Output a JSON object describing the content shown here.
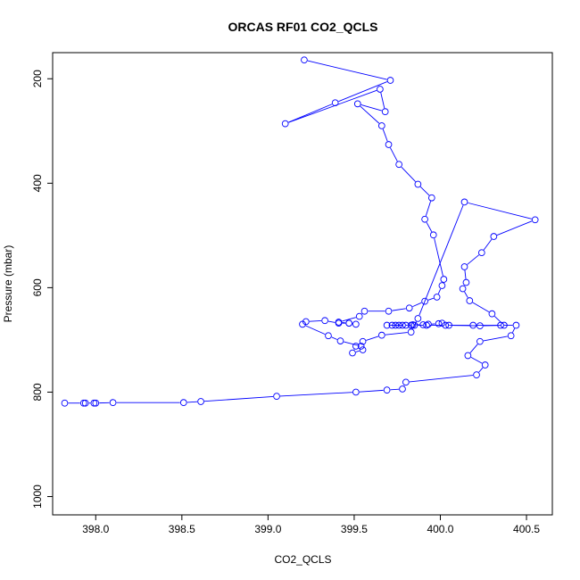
{
  "chart_data": {
    "type": "line",
    "title": "ORCAS RF01 CO2_QCLS",
    "xlabel": "CO2_QCLS",
    "ylabel": "Pressure (mbar)",
    "xlim": [
      397.75,
      400.65
    ],
    "ylim": [
      1035,
      150
    ],
    "y_inverted": true,
    "x_ticks": [
      "398.0",
      "398.5",
      "399.0",
      "399.5",
      "400.0",
      "400.5"
    ],
    "x_tick_values": [
      398.0,
      398.5,
      399.0,
      399.5,
      400.0,
      400.5
    ],
    "y_ticks": [
      "200",
      "400",
      "600",
      "800",
      "1000"
    ],
    "y_tick_values": [
      200,
      400,
      600,
      800,
      1000
    ],
    "grid": false,
    "marker": "open-circle",
    "series": [
      {
        "color": "#0000ff",
        "x": [
          399.21,
          399.71,
          399.39,
          399.1,
          399.65,
          399.68,
          399.52,
          399.66,
          399.7,
          399.76,
          399.87,
          399.95,
          399.91,
          399.96,
          400.02,
          400.01,
          399.98,
          399.91,
          399.82,
          399.7,
          399.56,
          399.53,
          399.41,
          399.47,
          399.51,
          399.47,
          399.41,
          399.33,
          399.22,
          399.2,
          399.35,
          399.42,
          399.54,
          399.55,
          399.49,
          399.51,
          399.55,
          399.66,
          399.83,
          399.87,
          400.14,
          400.55,
          400.31,
          400.24,
          400.14,
          400.15,
          400.13,
          400.17,
          400.3,
          400.37,
          400.23,
          400.05,
          400.01,
          399.99,
          399.93,
          399.9,
          399.84,
          399.83,
          399.78,
          399.76,
          399.74,
          399.72,
          399.69,
          399.8,
          399.85,
          399.92,
          400.03,
          400.19,
          400.35,
          400.44,
          400.41,
          400.23,
          400.16,
          400.26,
          400.21,
          399.8,
          399.78,
          399.69,
          399.51,
          399.05,
          398.61,
          398.51,
          398.1,
          398.0,
          397.99,
          397.94,
          397.93,
          397.82
        ],
        "y": [
          164,
          203,
          246,
          286,
          220,
          263,
          248,
          290,
          326,
          364,
          402,
          428,
          469,
          499,
          584,
          596,
          618,
          626,
          639,
          645,
          645,
          655,
          666,
          668,
          670,
          668,
          668,
          663,
          665,
          670,
          692,
          702,
          712,
          719,
          725,
          712,
          703,
          691,
          685,
          659,
          436,
          470,
          502,
          533,
          560,
          590,
          602,
          625,
          650,
          672,
          673,
          672,
          668,
          669,
          670,
          671,
          671,
          672,
          672,
          672,
          672,
          672,
          672,
          672,
          672,
          672,
          672,
          672,
          672,
          672,
          692,
          703,
          730,
          748,
          767,
          781,
          794,
          796,
          800,
          808,
          818,
          820,
          820,
          821,
          821,
          821,
          821,
          821
        ]
      }
    ]
  }
}
